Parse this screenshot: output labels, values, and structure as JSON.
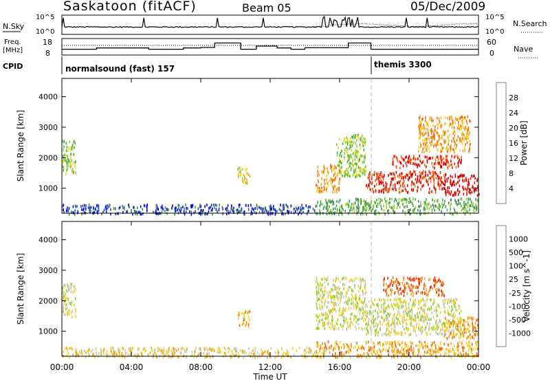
{
  "header": {
    "title": "Saskatoon (fitACF)",
    "beam": "Beam 05",
    "date": "05/Dec/2009"
  },
  "nsky_panel": {
    "left_label": "N.Sky",
    "right_label": "N.Search",
    "left_ticks": [
      "10^5",
      "10^0"
    ],
    "right_ticks": [
      "10^5",
      "10^0"
    ]
  },
  "freq_panel": {
    "left_label_1": "Freq.",
    "left_label_2": "[MHz]",
    "right_label": "Nave",
    "left_ticks": [
      "18",
      "8"
    ],
    "right_ticks": [
      "60",
      "0"
    ],
    "freq_levels": [
      {
        "t0": 0,
        "t1": 2,
        "v": 11.5
      },
      {
        "t0": 2,
        "t1": 5,
        "v": 12.3
      },
      {
        "t0": 5,
        "t1": 7,
        "v": 11.5
      },
      {
        "t0": 7,
        "t1": 8,
        "v": 12.3
      },
      {
        "t0": 8,
        "t1": 8.8,
        "v": 12.6
      },
      {
        "t0": 8.8,
        "t1": 10.3,
        "v": 15.3
      },
      {
        "t0": 10.3,
        "t1": 11.2,
        "v": 11.5
      },
      {
        "t0": 11.2,
        "t1": 12.4,
        "v": 13.4
      },
      {
        "t0": 12.4,
        "t1": 13.2,
        "v": 12.3
      },
      {
        "t0": 13.2,
        "t1": 14.0,
        "v": 11.5
      },
      {
        "t0": 14.0,
        "t1": 16.5,
        "v": 12.4
      },
      {
        "t0": 16.5,
        "t1": 17.8,
        "v": 15.3
      },
      {
        "t0": 17.8,
        "t1": 24,
        "v": 11.5
      }
    ]
  },
  "cpid": {
    "label": "CPID",
    "modes": [
      {
        "name": "normalsound (fast) 157",
        "t0": 0
      },
      {
        "name": "themis 3300",
        "t0": 17.85
      }
    ]
  },
  "time_axis": {
    "label": "Time UT",
    "ticks": [
      "00:00",
      "04:00",
      "08:00",
      "12:00",
      "16:00",
      "20:00",
      "00:00"
    ]
  },
  "chart_data": [
    {
      "type": "heatmap",
      "title": "Power",
      "ylabel": "Slant Range [km]",
      "xlabel": "",
      "xlim": [
        0,
        24
      ],
      "ylim": [
        180,
        4600
      ],
      "yticks": [
        1000,
        2000,
        3000,
        4000
      ],
      "colorbar": {
        "label": "Power [dB]",
        "ticks": [
          "28",
          "24",
          "20",
          "16",
          "12",
          "8",
          "4"
        ],
        "colors": [
          "#0000ff",
          "#2b4bb0",
          "#3d8a5e",
          "#46b040",
          "#8fce2a",
          "#f2d21a",
          "#f4a21a",
          "#f26a10",
          "#e8200a",
          "#d00000"
        ]
      },
      "patches": [
        {
          "t": [
            0.0,
            0.8
          ],
          "r": [
            1500,
            2600
          ],
          "c": 4
        },
        {
          "t": [
            0.0,
            14.6
          ],
          "r": [
            180,
            500
          ],
          "c": 1
        },
        {
          "t": [
            10.1,
            10.8
          ],
          "r": [
            1200,
            1700
          ],
          "c": 5
        },
        {
          "t": [
            14.6,
            16.0
          ],
          "r": [
            900,
            1800
          ],
          "c": 6
        },
        {
          "t": [
            15.8,
            17.5
          ],
          "r": [
            1400,
            2800
          ],
          "c": 4
        },
        {
          "t": [
            17.5,
            22.0
          ],
          "r": [
            900,
            1600
          ],
          "c": 8
        },
        {
          "t": [
            19.0,
            23.0
          ],
          "r": [
            1700,
            2100
          ],
          "c": 8
        },
        {
          "t": [
            22.0,
            24.0
          ],
          "r": [
            800,
            1500
          ],
          "c": 9
        },
        {
          "t": [
            20.5,
            23.5
          ],
          "r": [
            2200,
            3400
          ],
          "c": 6
        },
        {
          "t": [
            14.6,
            24.0
          ],
          "r": [
            180,
            700
          ],
          "c": 3
        }
      ]
    },
    {
      "type": "heatmap",
      "title": "Velocity",
      "ylabel": "Slant Range [km]",
      "xlabel": "Time UT",
      "xlim": [
        0,
        24
      ],
      "ylim": [
        180,
        4600
      ],
      "yticks": [
        1000,
        2000,
        3000,
        4000
      ],
      "colorbar": {
        "label": "Velocity [m s^-1]",
        "ticks": [
          "1000",
          "500",
          "100",
          "25",
          "-25",
          "-100",
          "-500",
          "-1000"
        ],
        "colors": [
          "#2a40c8",
          "#3a7a78",
          "#46b040",
          "#8fd030",
          "#c8c8c0",
          "#f4d21a",
          "#f4a020",
          "#f06a10",
          "#e02010"
        ]
      },
      "patches": [
        {
          "t": [
            0.0,
            0.8
          ],
          "r": [
            1500,
            2600
          ],
          "c": 4
        },
        {
          "t": [
            0.0,
            14.6
          ],
          "r": [
            180,
            500
          ],
          "c": 5
        },
        {
          "t": [
            10.1,
            10.8
          ],
          "r": [
            1200,
            1700
          ],
          "c": 6
        },
        {
          "t": [
            14.6,
            17.5
          ],
          "r": [
            1100,
            2800
          ],
          "c": 4
        },
        {
          "t": [
            17.5,
            23.0
          ],
          "r": [
            900,
            2100
          ],
          "c": 4
        },
        {
          "t": [
            18.5,
            22.0
          ],
          "r": [
            2200,
            2800
          ],
          "c": 7
        },
        {
          "t": [
            14.6,
            24.0
          ],
          "r": [
            180,
            700
          ],
          "c": 6
        },
        {
          "t": [
            22.0,
            24.0
          ],
          "r": [
            800,
            1500
          ],
          "c": 6
        }
      ]
    }
  ]
}
